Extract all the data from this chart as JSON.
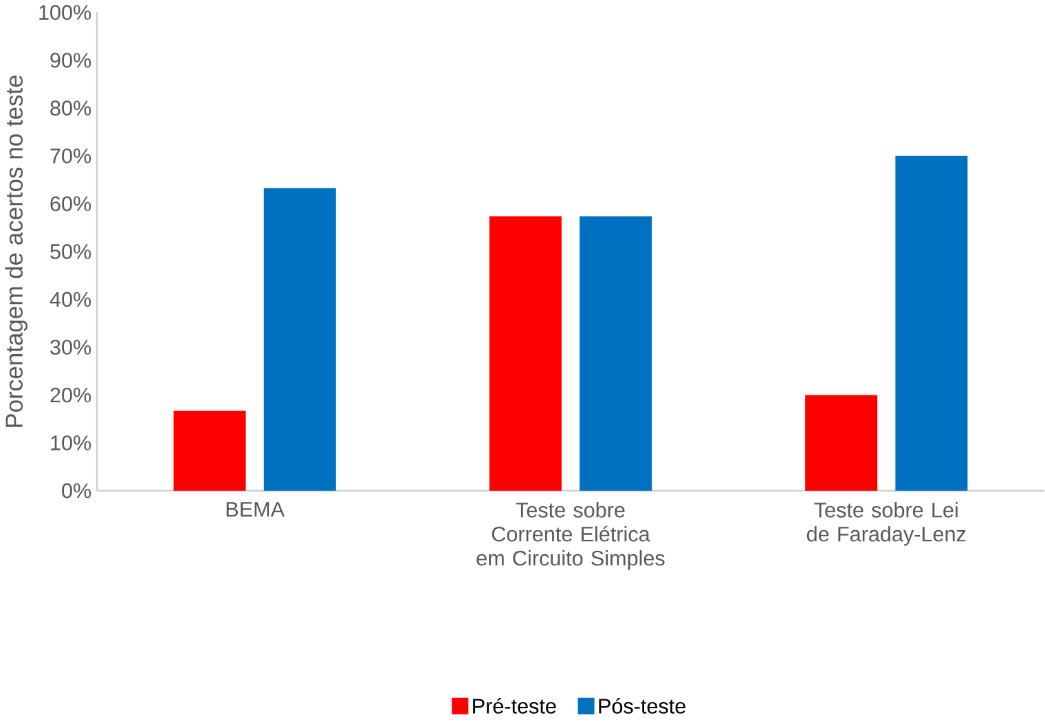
{
  "chart_data": {
    "type": "bar",
    "ylabel": "Porcentagem de acertos no teste",
    "categories": [
      "BEMA",
      "Teste sobre Corrente Elétrica em Circuito Simples",
      "Teste sobre Lei de Faraday-Lenz"
    ],
    "series": [
      {
        "name": "Pré-teste",
        "color": "#ff0000",
        "values": [
          16.7,
          57.4,
          20
        ]
      },
      {
        "name": "Pós-teste",
        "color": "#0070c0",
        "values": [
          63.3,
          57.4,
          70
        ]
      }
    ],
    "ylim": [
      0,
      100
    ],
    "yticks": [
      {
        "value": 0,
        "label": "0%"
      },
      {
        "value": 10,
        "label": "10%"
      },
      {
        "value": 20,
        "label": "20%"
      },
      {
        "value": 30,
        "label": "30%"
      },
      {
        "value": 40,
        "label": "40%"
      },
      {
        "value": 50,
        "label": "50%"
      },
      {
        "value": 60,
        "label": "60%"
      },
      {
        "value": 70,
        "label": "70%"
      },
      {
        "value": 80,
        "label": "80%"
      },
      {
        "value": 90,
        "label": "90%"
      },
      {
        "value": 100,
        "label": "100%"
      }
    ],
    "grid": false,
    "legend": "bottom"
  }
}
